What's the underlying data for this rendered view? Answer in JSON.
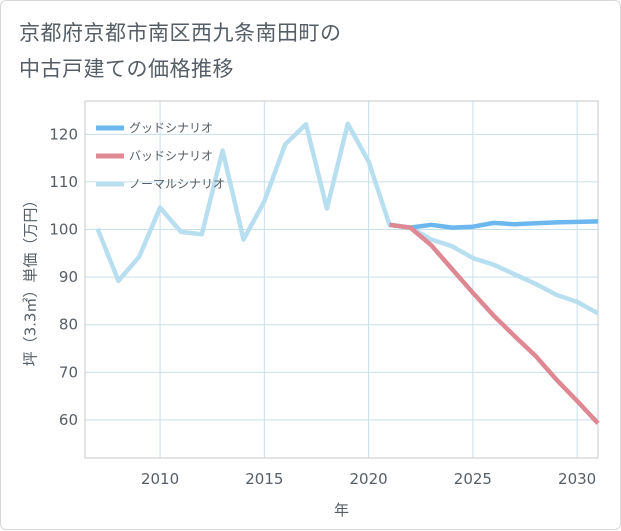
{
  "title_lines": [
    "京都府京都市南区西九条南田町の",
    "中古戸建ての価格推移"
  ],
  "chart_data": {
    "type": "line",
    "xlabel": "年",
    "ylabel": "坪（3.3㎡）単価（万円）",
    "xlim": [
      2006.4,
      2031
    ],
    "ylim": [
      52,
      127
    ],
    "xticks": [
      2010,
      2015,
      2020,
      2025,
      2030
    ],
    "yticks": [
      60,
      70,
      80,
      90,
      100,
      110,
      120
    ],
    "legend_position": "top-left",
    "series": [
      {
        "name": "グッドシナリオ",
        "color": "#6bb7ee",
        "x": [
          2021,
          2022,
          2023,
          2024,
          2025,
          2026,
          2027,
          2028,
          2029,
          2030,
          2031
        ],
        "y": [
          101,
          100.4,
          101.0,
          100.4,
          100.6,
          101.4,
          101.1,
          101.3,
          101.5,
          101.6,
          101.7
        ]
      },
      {
        "name": "バッドシナリオ",
        "color": "#de8893",
        "x": [
          2021,
          2022,
          2023,
          2024,
          2025,
          2026,
          2027,
          2028,
          2029,
          2030,
          2031
        ],
        "y": [
          101,
          100.4,
          96.7,
          91.7,
          86.7,
          81.9,
          77.6,
          73.5,
          68.5,
          64.0,
          59.3
        ]
      },
      {
        "name": "ノーマルシナリオ",
        "color": "#b8dff0",
        "x": [
          2007,
          2008,
          2009,
          2010,
          2011,
          2012,
          2013,
          2014,
          2015,
          2016,
          2017,
          2018,
          2019,
          2020,
          2021,
          2022,
          2023,
          2024,
          2025,
          2026,
          2027,
          2028,
          2029,
          2030,
          2031
        ],
        "y": [
          100.2,
          89.2,
          94.3,
          104.6,
          99.5,
          99.0,
          116.6,
          97.9,
          105.9,
          117.9,
          122.1,
          104.4,
          122.2,
          114.3,
          101,
          100.4,
          97.9,
          96.5,
          94.0,
          92.6,
          90.6,
          88.6,
          86.3,
          84.8,
          82.4
        ]
      }
    ]
  }
}
